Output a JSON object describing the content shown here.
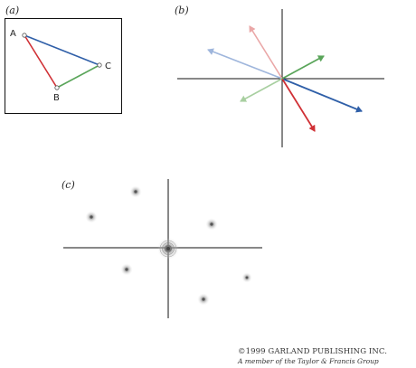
{
  "panels": {
    "a": {
      "label": "(a)",
      "vertices": {
        "A": "A",
        "B": "B",
        "C": "C"
      }
    },
    "b": {
      "label": "(b)"
    },
    "c": {
      "label": "(c)"
    }
  },
  "colors": {
    "AC": "#2f5fa8",
    "AB": "#d03035",
    "BC": "#5aa55a",
    "AC_faint": "#9fb6dc",
    "AB_faint": "#eaa7a7",
    "BC_faint": "#a8cfa0",
    "axis": "#111111",
    "spot": "#777777"
  },
  "credit": {
    "line1": "©1999 GARLAND PUBLISHING INC.",
    "line2": "A member of the Taylor & Francis Group"
  }
}
